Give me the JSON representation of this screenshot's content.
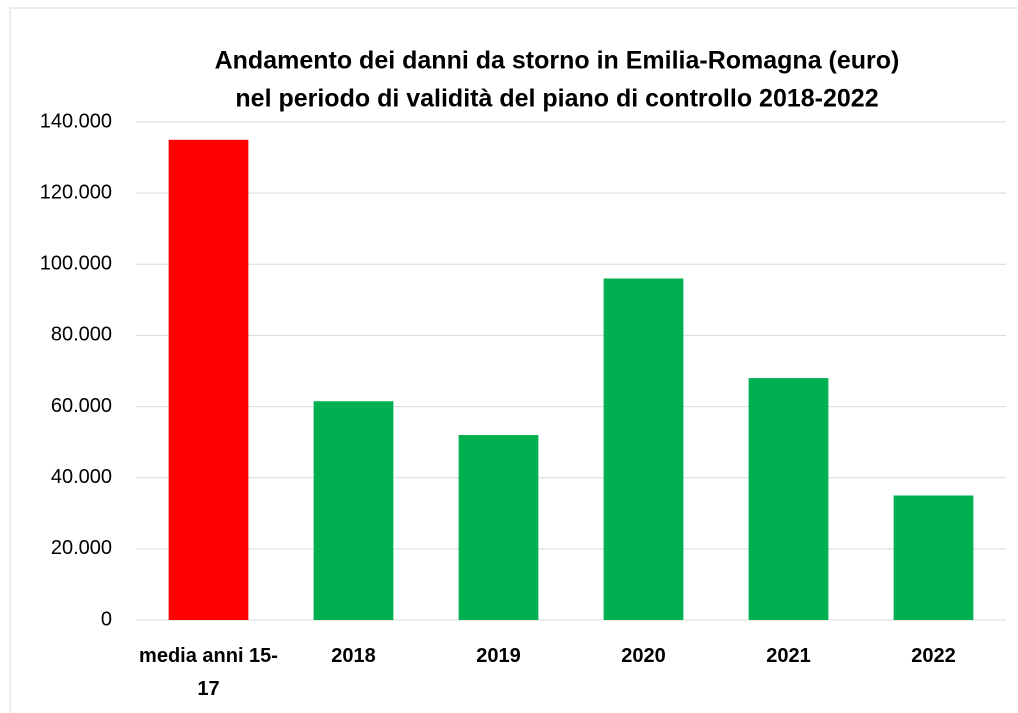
{
  "chart_data": {
    "type": "bar",
    "title": [
      "Andamento dei danni da storno in Emilia-Romagna (euro)",
      "nel periodo di validità del piano di controllo 2018-2022"
    ],
    "categories": [
      "media anni 15-17",
      "2018",
      "2019",
      "2020",
      "2021",
      "2022"
    ],
    "values": [
      135000,
      61500,
      52000,
      96000,
      68000,
      35000
    ],
    "colors": [
      "#ff0000",
      "#00b050",
      "#00b050",
      "#00b050",
      "#00b050",
      "#00b050"
    ],
    "ylim": [
      0,
      140000
    ],
    "yticks": [
      0,
      {
        "value": 20000,
        "label": "20.000"
      },
      {
        "value": 40000,
        "label": "40.000"
      },
      {
        "value": 60000,
        "label": "60.000"
      },
      {
        "value": 80000,
        "label": "80.000"
      },
      {
        "value": 100000,
        "label": "100.000"
      },
      {
        "value": 120000,
        "label": "120.000"
      },
      {
        "value": 140000,
        "label": "140.000"
      }
    ],
    "grid": true
  }
}
